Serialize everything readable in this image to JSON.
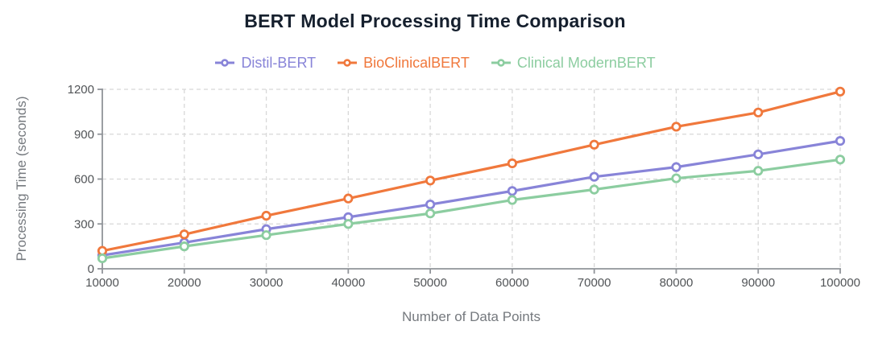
{
  "chart_data": {
    "type": "line",
    "title": "BERT Model Processing Time Comparison",
    "xlabel": "Number of Data Points",
    "ylabel": "Processing Time (seconds)",
    "x": [
      10000,
      20000,
      30000,
      40000,
      50000,
      60000,
      70000,
      80000,
      90000,
      100000
    ],
    "xlim": [
      10000,
      100000
    ],
    "ylim": [
      0,
      1200
    ],
    "yticks": [
      0,
      300,
      600,
      900,
      1200
    ],
    "grid": true,
    "grid_style": "dashed",
    "legend_position": "top-center",
    "marker": "open-circle",
    "series": [
      {
        "name": "Distil-BERT",
        "color": "#8884d8",
        "values": [
          90,
          175,
          265,
          345,
          430,
          520,
          615,
          680,
          765,
          855
        ]
      },
      {
        "name": "BioClinicalBERT",
        "color": "#f0783c",
        "values": [
          120,
          230,
          355,
          470,
          590,
          705,
          830,
          950,
          1045,
          1185
        ]
      },
      {
        "name": "Clinical ModernBERT",
        "color": "#8ccda0",
        "values": [
          70,
          150,
          225,
          300,
          370,
          460,
          530,
          605,
          655,
          730
        ]
      }
    ]
  }
}
